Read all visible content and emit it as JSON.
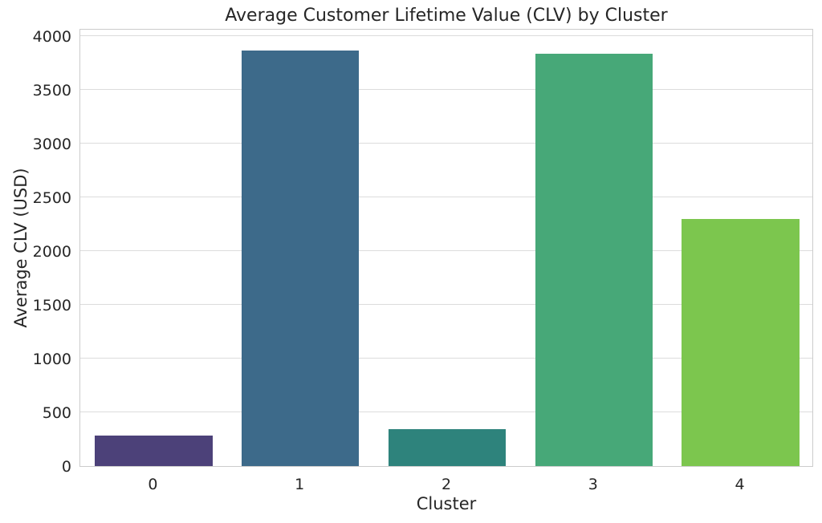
{
  "chart_data": {
    "type": "bar",
    "title": "Average Customer Lifetime Value (CLV) by Cluster",
    "xlabel": "Cluster",
    "ylabel": "Average CLV (USD)",
    "categories": [
      "0",
      "1",
      "2",
      "3",
      "4"
    ],
    "values": [
      285,
      3865,
      340,
      3835,
      2300
    ],
    "bar_colors": [
      "#4c4179",
      "#3d6a8a",
      "#2e837c",
      "#47a878",
      "#7cc64e"
    ],
    "yticks": [
      0,
      500,
      1000,
      1500,
      2000,
      2500,
      3000,
      3500,
      4000
    ],
    "ylim": [
      0,
      4075
    ],
    "grid": "horizontal gridlines, drawn below bars",
    "legend": "none",
    "colors": {
      "background": "#ffffff",
      "text": "#262626",
      "spine": "#cccccc",
      "gridline": "#dcdcdc"
    }
  }
}
